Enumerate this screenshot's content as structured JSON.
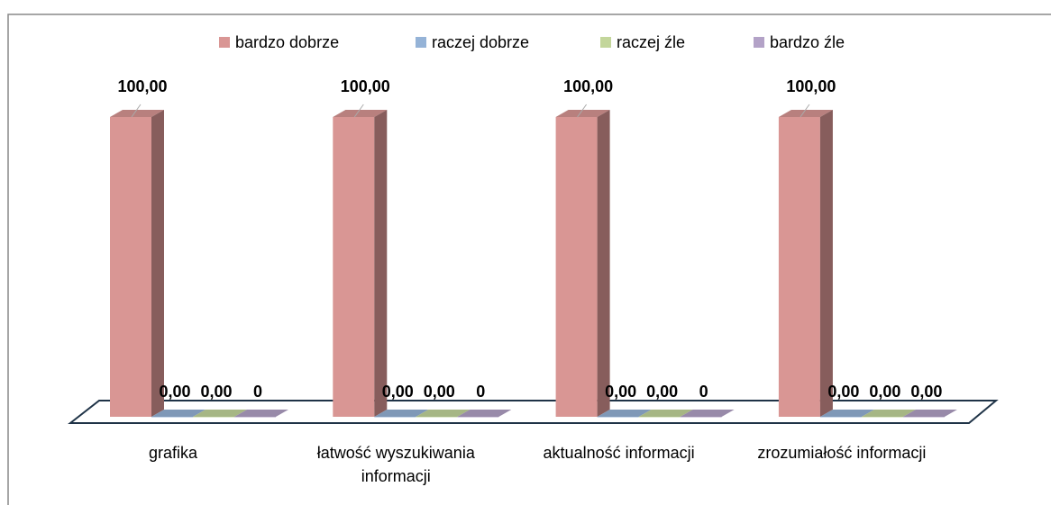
{
  "chart_data": {
    "type": "bar3d",
    "categories": [
      "grafika",
      "łatwość wyszukiwania informacji",
      "aktualność informacji",
      "zrozumiałość informacji"
    ],
    "series": [
      {
        "name": "bardzo dobrze",
        "color": "#d99694",
        "values": [
          100,
          100,
          100,
          100
        ],
        "value_labels": [
          "100,00",
          "100,00",
          "100,00",
          "100,00"
        ]
      },
      {
        "name": "raczej dobrze",
        "color": "#95b3d7",
        "values": [
          0,
          0,
          0,
          0
        ],
        "value_labels": [
          "0,00",
          "0,00",
          "0,00",
          "0,00"
        ]
      },
      {
        "name": "raczej źle",
        "color": "#c3d69b",
        "values": [
          0,
          0,
          0,
          0
        ],
        "value_labels": [
          "0,00",
          "0,00",
          "0,00",
          "0,00"
        ]
      },
      {
        "name": "bardzo źle",
        "color": "#b3a2c7",
        "values": [
          0,
          0,
          0,
          0
        ],
        "value_labels": [
          "0",
          "0",
          "0",
          "0,00"
        ]
      }
    ],
    "legend": "top"
  }
}
